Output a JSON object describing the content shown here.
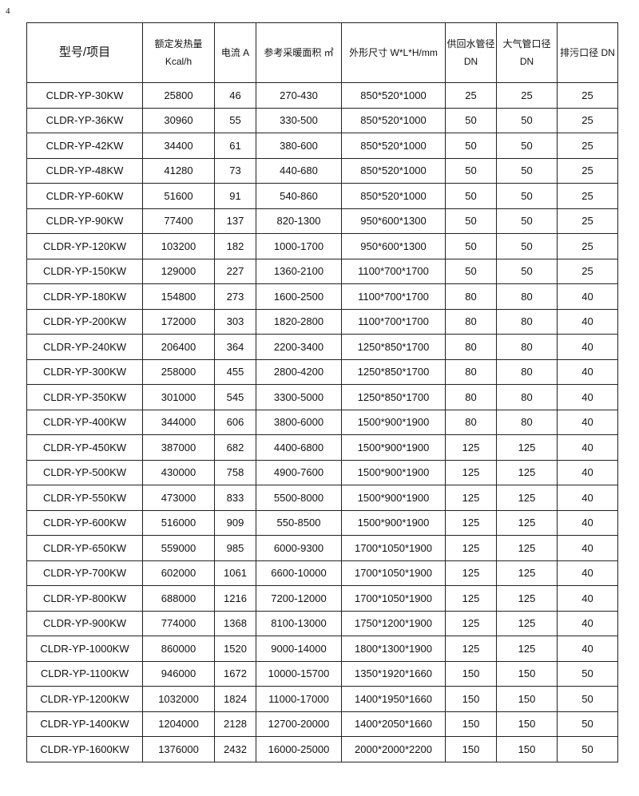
{
  "page_number": "4",
  "headers": [
    "型号/项目",
    "额定发热量 Kcal/h",
    "电流 A",
    "参考采暖面积 ㎡",
    "外形尺寸 W*L*H/mm",
    "供回水管径 DN",
    "大气管口径 DN",
    "排污口径 DN"
  ],
  "rows": [
    [
      "CLDR-YP-30KW",
      "25800",
      "46",
      "270-430",
      "850*520*1000",
      "25",
      "25",
      "25"
    ],
    [
      "CLDR-YP-36KW",
      "30960",
      "55",
      "330-500",
      "850*520*1000",
      "50",
      "50",
      "25"
    ],
    [
      "CLDR-YP-42KW",
      "34400",
      "61",
      "380-600",
      "850*520*1000",
      "50",
      "50",
      "25"
    ],
    [
      "CLDR-YP-48KW",
      "41280",
      "73",
      "440-680",
      "850*520*1000",
      "50",
      "50",
      "25"
    ],
    [
      "CLDR-YP-60KW",
      "51600",
      "91",
      "540-860",
      "850*520*1000",
      "50",
      "50",
      "25"
    ],
    [
      "CLDR-YP-90KW",
      "77400",
      "137",
      "820-1300",
      "950*600*1300",
      "50",
      "50",
      "25"
    ],
    [
      "CLDR-YP-120KW",
      "103200",
      "182",
      "1000-1700",
      "950*600*1300",
      "50",
      "50",
      "25"
    ],
    [
      "CLDR-YP-150KW",
      "129000",
      "227",
      "1360-2100",
      "1100*700*1700",
      "50",
      "50",
      "25"
    ],
    [
      "CLDR-YP-180KW",
      "154800",
      "273",
      "1600-2500",
      "1100*700*1700",
      "80",
      "80",
      "40"
    ],
    [
      "CLDR-YP-200KW",
      "172000",
      "303",
      "1820-2800",
      "1100*700*1700",
      "80",
      "80",
      "40"
    ],
    [
      "CLDR-YP-240KW",
      "206400",
      "364",
      "2200-3400",
      "1250*850*1700",
      "80",
      "80",
      "40"
    ],
    [
      "CLDR-YP-300KW",
      "258000",
      "455",
      "2800-4200",
      "1250*850*1700",
      "80",
      "80",
      "40"
    ],
    [
      "CLDR-YP-350KW",
      "301000",
      "545",
      "3300-5000",
      "1250*850*1700",
      "80",
      "80",
      "40"
    ],
    [
      "CLDR-YP-400KW",
      "344000",
      "606",
      "3800-6000",
      "1500*900*1900",
      "80",
      "80",
      "40"
    ],
    [
      "CLDR-YP-450KW",
      "387000",
      "682",
      "4400-6800",
      "1500*900*1900",
      "125",
      "125",
      "40"
    ],
    [
      "CLDR-YP-500KW",
      "430000",
      "758",
      "4900-7600",
      "1500*900*1900",
      "125",
      "125",
      "40"
    ],
    [
      "CLDR-YP-550KW",
      "473000",
      "833",
      "5500-8000",
      "1500*900*1900",
      "125",
      "125",
      "40"
    ],
    [
      "CLDR-YP-600KW",
      "516000",
      "909",
      "550-8500",
      "1500*900*1900",
      "125",
      "125",
      "40"
    ],
    [
      "CLDR-YP-650KW",
      "559000",
      "985",
      "6000-9300",
      "1700*1050*1900",
      "125",
      "125",
      "40"
    ],
    [
      "CLDR-YP-700KW",
      "602000",
      "1061",
      "6600-10000",
      "1700*1050*1900",
      "125",
      "125",
      "40"
    ],
    [
      "CLDR-YP-800KW",
      "688000",
      "1216",
      "7200-12000",
      "1700*1050*1900",
      "125",
      "125",
      "40"
    ],
    [
      "CLDR-YP-900KW",
      "774000",
      "1368",
      "8100-13000",
      "1750*1200*1900",
      "125",
      "125",
      "40"
    ],
    [
      "CLDR-YP-1000KW",
      "860000",
      "1520",
      "9000-14000",
      "1800*1300*1900",
      "125",
      "125",
      "40"
    ],
    [
      "CLDR-YP-1100KW",
      "946000",
      "1672",
      "10000-15700",
      "1350*1920*1660",
      "150",
      "150",
      "50"
    ],
    [
      "CLDR-YP-1200KW",
      "1032000",
      "1824",
      "11000-17000",
      "1400*1950*1660",
      "150",
      "150",
      "50"
    ],
    [
      "CLDR-YP-1400KW",
      "1204000",
      "2128",
      "12700-20000",
      "1400*2050*1660",
      "150",
      "150",
      "50"
    ],
    [
      "CLDR-YP-1600KW",
      "1376000",
      "2432",
      "16000-25000",
      "2000*2000*2200",
      "150",
      "150",
      "50"
    ]
  ]
}
